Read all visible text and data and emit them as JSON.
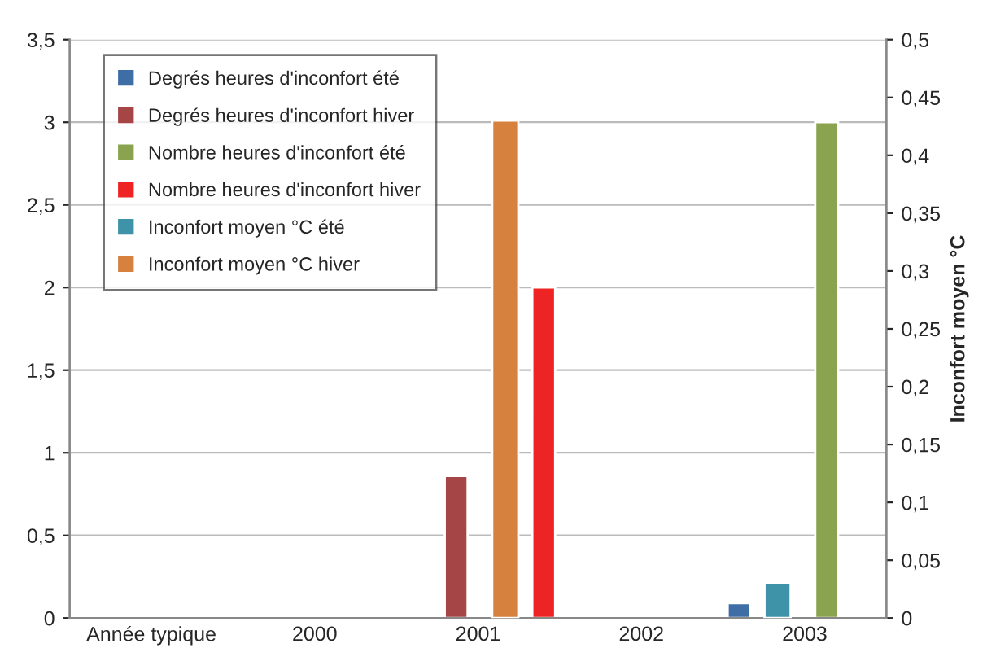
{
  "chart_data": {
    "type": "bar",
    "y2label": "Inconfort moyen °C",
    "categories": [
      "Année typique",
      "2000",
      "2001",
      "2002",
      "2003"
    ],
    "series": [
      {
        "name": "Degrés heures d'inconfort été",
        "color": "#3f6ea6",
        "values": [
          null,
          null,
          null,
          null,
          0.09
        ]
      },
      {
        "name": "Degrés heures d'inconfort hiver",
        "color": "#a54545",
        "values": [
          null,
          null,
          0.86,
          null,
          null
        ]
      },
      {
        "name": "Nombre heures d'inconfort été",
        "color": "#8aa34e",
        "values": [
          null,
          null,
          null,
          null,
          3.0
        ]
      },
      {
        "name": "Nombre heures d'inconfort hiver",
        "color": "#ee2424",
        "values": [
          null,
          null,
          2.0,
          null,
          null
        ]
      },
      {
        "name": "Inconfort moyen °C été",
        "color": "#3e93a8",
        "axis": "y2",
        "values": [
          null,
          null,
          null,
          null,
          0.03
        ]
      },
      {
        "name": "Inconfort moyen °C hiver",
        "color": "#d6823e",
        "axis": "y2",
        "values": [
          null,
          null,
          0.43,
          null,
          null
        ]
      }
    ],
    "ylim": [
      0,
      3.5
    ],
    "yticks": [
      0,
      {
        "value": 0.5,
        "label": "0,5"
      },
      1,
      {
        "value": 1.5,
        "label": "1,5"
      },
      2,
      {
        "value": 2.5,
        "label": "2,5"
      },
      3,
      {
        "value": 3.5,
        "label": "3,5"
      }
    ],
    "y2lim": [
      0,
      0.5
    ],
    "y2ticks": [
      0,
      {
        "value": 0.05,
        "label": "0,05"
      },
      {
        "value": 0.1,
        "label": "0,1"
      },
      {
        "value": 0.15,
        "label": "0,15"
      },
      {
        "value": 0.2,
        "label": "0,2"
      },
      {
        "value": 0.25,
        "label": "0,25"
      },
      {
        "value": 0.3,
        "label": "0,3"
      },
      {
        "value": 0.35,
        "label": "0,35"
      },
      {
        "value": 0.4,
        "label": "0,4"
      },
      {
        "value": 0.45,
        "label": "0,45"
      },
      {
        "value": 0.5,
        "label": "0,5"
      }
    ],
    "grid": "y",
    "legend": "top left"
  }
}
